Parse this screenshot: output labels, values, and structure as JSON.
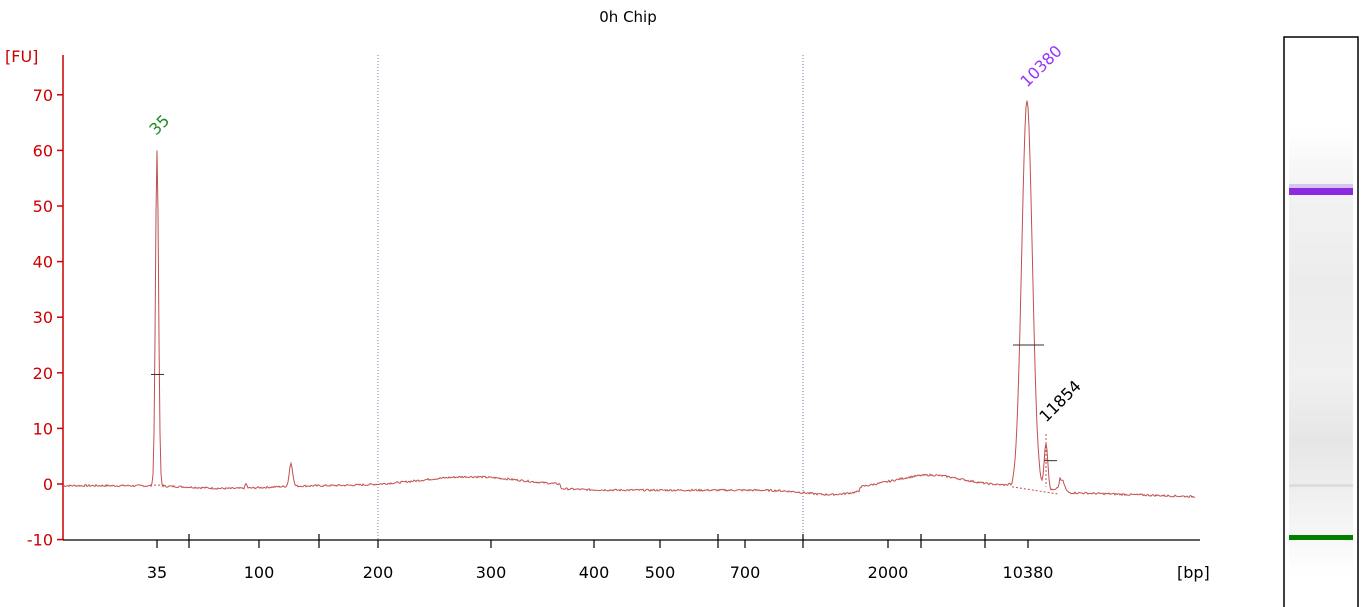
{
  "chart_data": {
    "type": "line",
    "title": "0h Chip",
    "ylabel": "[FU]",
    "xlabel": "[bp]",
    "ylim": [
      -10,
      70
    ],
    "y_ticks": [
      -10,
      0,
      10,
      20,
      30,
      40,
      50,
      60,
      70
    ],
    "x_tick_labels": [
      "35",
      "100",
      "200",
      "300",
      "400",
      "500",
      "700",
      "2000",
      "10380"
    ],
    "grid": "dotted vertical lines at 200 and 1000 bp",
    "series": [
      {
        "color": "#c0504d",
        "x": [
          "35",
          "100",
          "200",
          "300",
          "400",
          "500",
          "700",
          "2000",
          "10380"
        ],
        "y": [
          60,
          -0.5,
          -0.3,
          1.3,
          -0.7,
          -0.9,
          -1.2,
          0.8,
          69
        ]
      }
    ],
    "peaks": [
      {
        "label": "35",
        "value": 60,
        "color": "#228b22"
      },
      {
        "label": "10380",
        "value": 69,
        "color": "#9933ff"
      },
      {
        "label": "11854",
        "value": 9,
        "color": "#000000"
      }
    ]
  },
  "gel": {
    "bands": [
      {
        "name": "upper-marker",
        "color": "#8a2be2"
      },
      {
        "name": "lower-marker",
        "color": "#008000"
      }
    ]
  }
}
